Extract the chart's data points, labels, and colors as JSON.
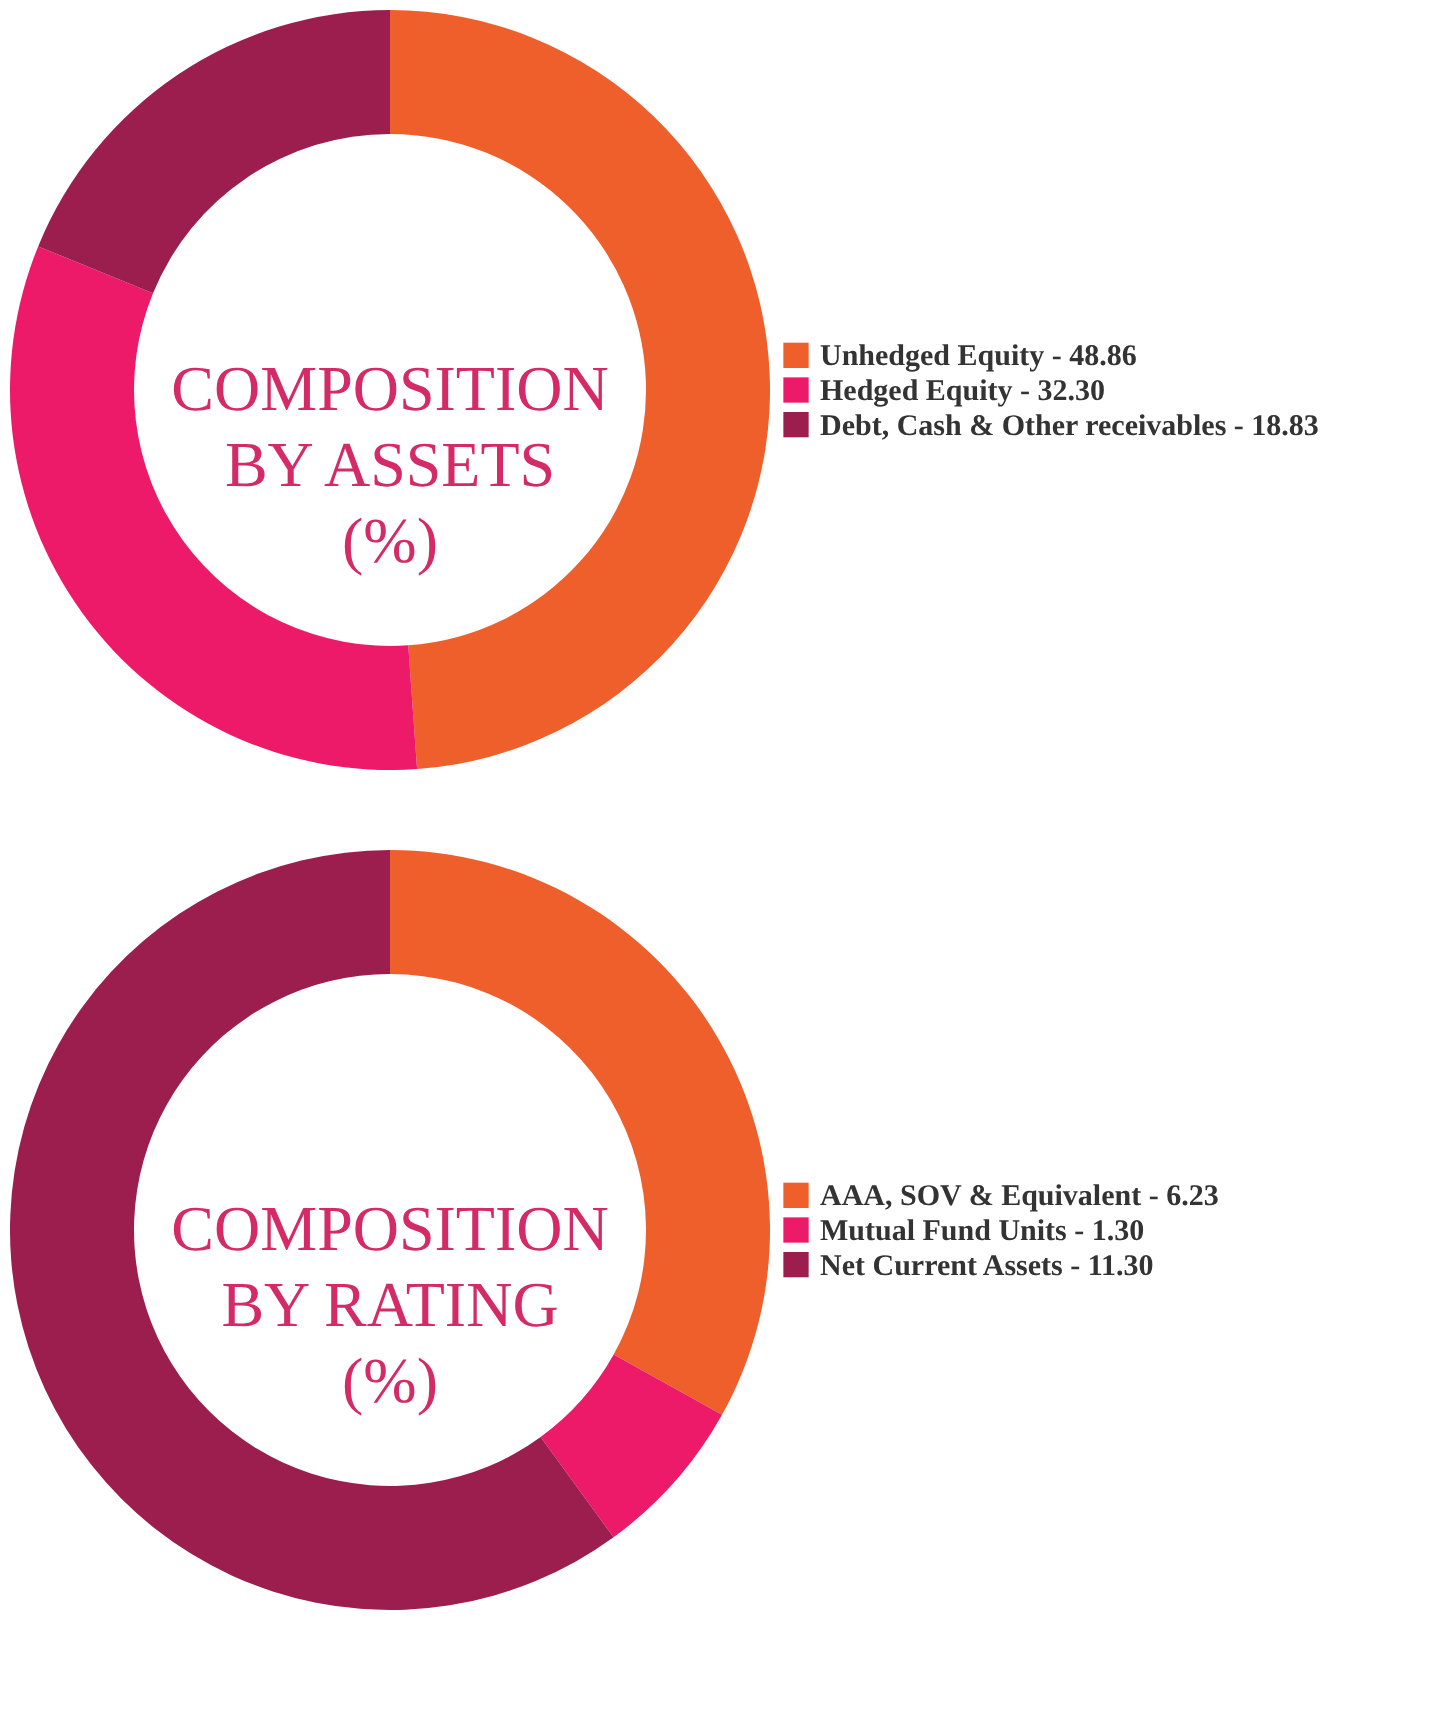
{
  "chart_data": [
    {
      "type": "donut",
      "title": "COMPOSITION\nBY ASSETS\n(%)",
      "categories": [
        "Unhedged Equity -",
        "Hedged Equity -",
        "Debt, Cash & Other receivables -"
      ],
      "values": [
        48.86,
        32.3,
        18.83
      ],
      "value_labels": [
        "48.86",
        "32.30",
        "18.83"
      ],
      "colors": [
        "#ee5f2b",
        "#ec1a68",
        "#9b1e4f"
      ],
      "legend": "right"
    },
    {
      "type": "donut",
      "title": "COMPOSITION\nBY RATING\n(%)",
      "categories": [
        "AAA, SOV & Equivalent -",
        "Mutual Fund Units -",
        "Net Current Assets -"
      ],
      "values": [
        6.23,
        1.3,
        11.3
      ],
      "value_labels": [
        "6.23",
        "1.30",
        "11.30"
      ],
      "colors": [
        "#ee5f2b",
        "#ec1a68",
        "#9b1e4f"
      ],
      "legend": "right"
    }
  ]
}
